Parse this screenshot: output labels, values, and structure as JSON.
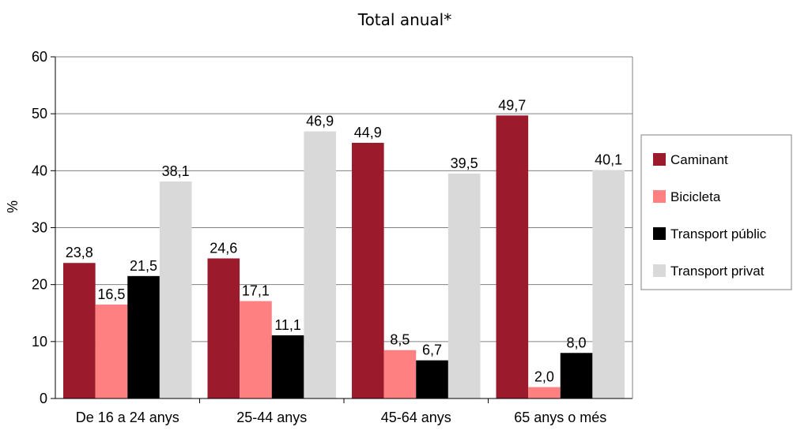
{
  "chart_data": {
    "type": "bar",
    "title": "Total anual*",
    "ylabel": "%",
    "xlabel": "",
    "ylim": [
      0,
      60
    ],
    "yticks": [
      0,
      10,
      20,
      30,
      40,
      50,
      60
    ],
    "grid": true,
    "legend_position": "right",
    "categories": [
      "De 16 a 24 anys",
      "25-44 anys",
      "45-64 anys",
      "65 anys o més"
    ],
    "series": [
      {
        "name": "Caminant",
        "color": "#9b1b2c",
        "values": [
          23.8,
          24.6,
          44.9,
          49.7
        ],
        "labels": [
          "23,8",
          "24,6",
          "44,9",
          "49,7"
        ]
      },
      {
        "name": "Bicicleta",
        "color": "#ff8080",
        "values": [
          16.5,
          17.1,
          8.5,
          2.0
        ],
        "labels": [
          "16,5",
          "17,1",
          "8,5",
          "2,0"
        ]
      },
      {
        "name": "Transport públic",
        "color": "#000000",
        "values": [
          21.5,
          11.1,
          6.7,
          8.0
        ],
        "labels": [
          "21,5",
          "11,1",
          "6,7",
          "8,0"
        ]
      },
      {
        "name": "Transport privat",
        "color": "#d9d9d9",
        "values": [
          38.1,
          46.9,
          39.5,
          40.1
        ],
        "labels": [
          "38,1",
          "46,9",
          "39,5",
          "40,1"
        ]
      }
    ]
  }
}
